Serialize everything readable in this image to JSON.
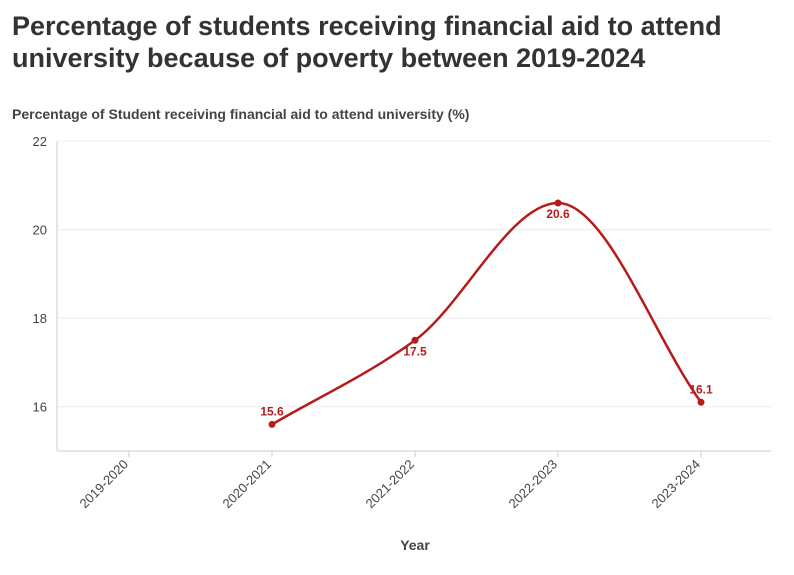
{
  "title": "Percentage of students receiving financial aid to attend university because of poverty between 2019-2024",
  "colors": {
    "line": "#b71c1c",
    "grid": "#ececec",
    "axis": "#cccccc"
  },
  "chart_data": {
    "type": "line",
    "title": "Percentage of students receiving financial aid to attend university because of poverty between 2019-2024",
    "ylabel": "Percentage of Student receiving financial aid to attend university (%)",
    "xlabel": "Year",
    "categories": [
      "2019-2020",
      "2020-2021",
      "2021-2022",
      "2022-2023",
      "2023-2024"
    ],
    "series": [
      {
        "values": [
          null,
          15.6,
          17.5,
          20.6,
          16.1
        ],
        "labels": [
          "",
          "15.6",
          "17.5",
          "20.6",
          "16.1"
        ]
      }
    ],
    "y_ticks": [
      "16",
      "18",
      "20",
      "22"
    ],
    "ylim": [
      15,
      22
    ],
    "grid": true,
    "smooth": true
  }
}
